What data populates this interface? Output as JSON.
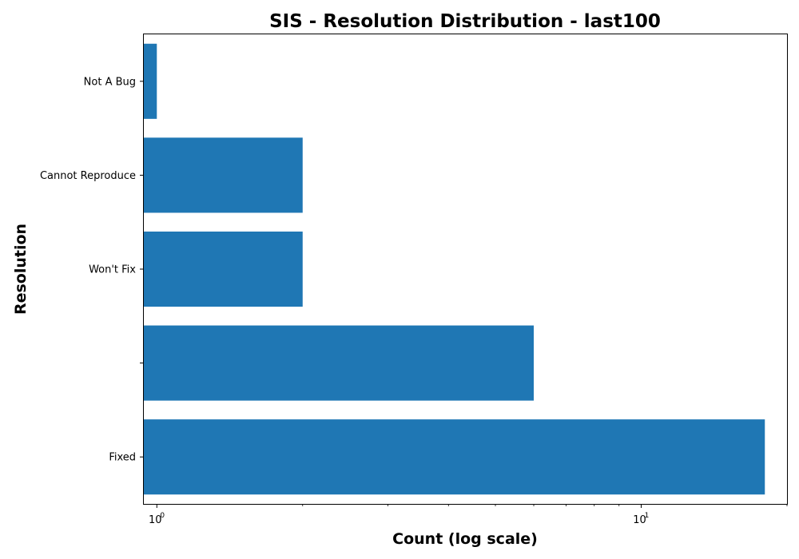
{
  "chart_data": {
    "type": "bar",
    "orientation": "horizontal",
    "title": "SIS - Resolution Distribution - last100",
    "xlabel": "Count (log scale)",
    "ylabel": "Resolution",
    "x_scale": "log",
    "xlim": [
      0.94,
      20
    ],
    "categories": [
      "Not A Bug",
      "Cannot Reproduce",
      "Won't Fix",
      "",
      "Fixed"
    ],
    "values": [
      1,
      2,
      2,
      6,
      18
    ],
    "major_ticks": [
      {
        "base": "10",
        "exp": "0",
        "value": 1
      },
      {
        "base": "10",
        "exp": "1",
        "value": 10
      }
    ],
    "bar_color": "#1f77b4",
    "grid": false,
    "legend": "none"
  }
}
